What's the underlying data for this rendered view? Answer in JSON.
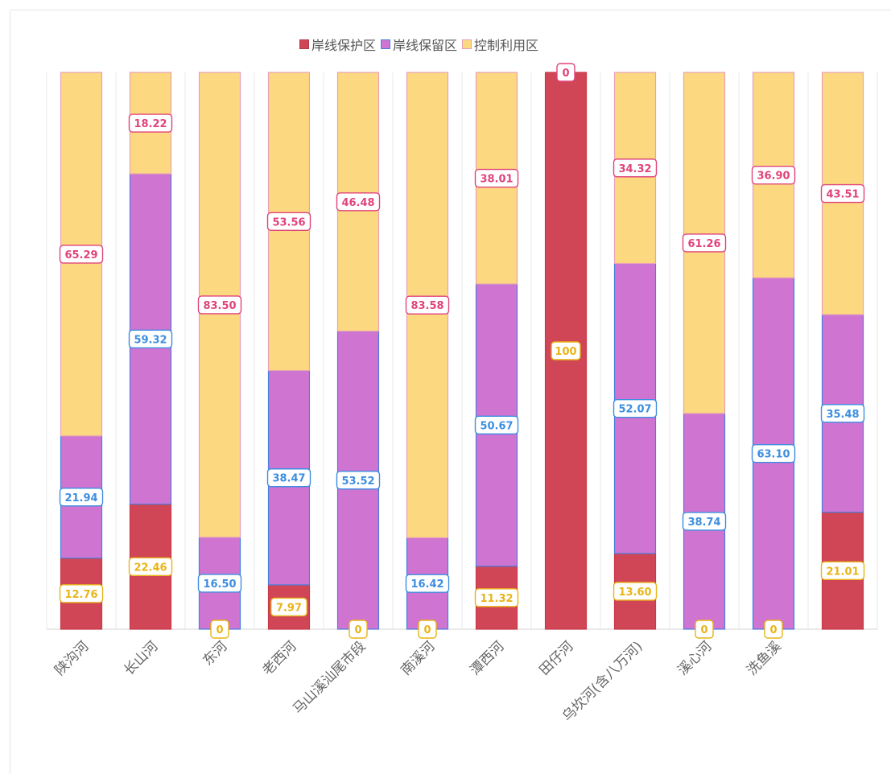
{
  "legend": [
    {
      "name": "岸线保护区",
      "color": "#d04656"
    },
    {
      "name": "岸线保留区",
      "color": "#d074d2"
    },
    {
      "name": "控制利用区",
      "color": "#fcd980"
    }
  ],
  "chart_data": {
    "type": "bar",
    "stacked": true,
    "percent": true,
    "categories": [
      "陕沟河",
      "长山河",
      "东河",
      "老西河",
      "马山溪汕尾市段",
      "南溪河",
      "潭西河",
      "田仔河",
      "乌坎河(含八万河)",
      "溪心河",
      "洗鱼溪",
      ""
    ],
    "series": [
      {
        "name": "岸线保护区",
        "color": "#d04656",
        "label_color": "#e8b417",
        "values": [
          12.76,
          22.46,
          0,
          7.97,
          0,
          0,
          11.32,
          100,
          13.6,
          0,
          0,
          21.01
        ],
        "labels": [
          "12.76",
          "22.46",
          "0",
          "7.97",
          "0",
          "0",
          "11.32",
          "100",
          "13.60",
          "0",
          "0",
          "21.01"
        ]
      },
      {
        "name": "岸线保留区",
        "color": "#d074d2",
        "label_color": "#3d8ee0",
        "values": [
          21.94,
          59.32,
          16.5,
          38.47,
          53.52,
          16.42,
          50.67,
          0,
          52.07,
          38.74,
          63.1,
          35.48
        ],
        "labels": [
          "21.94",
          "59.32",
          "16.50",
          "38.47",
          "53.52",
          "16.42",
          "50.67",
          "",
          "52.07",
          "38.74",
          "63.10",
          "35.48"
        ]
      },
      {
        "name": "控制利用区",
        "color": "#fcd980",
        "label_color": "#e0437b",
        "values": [
          65.29,
          18.22,
          83.5,
          53.56,
          46.48,
          83.58,
          38.01,
          0,
          34.32,
          61.26,
          36.9,
          43.51
        ],
        "labels": [
          "65.29",
          "18.22",
          "83.50",
          "53.56",
          "46.48",
          "83.58",
          "38.01",
          "0",
          "34.32",
          "61.26",
          "36.90",
          "43.51"
        ]
      }
    ],
    "ylim": [
      0,
      100
    ],
    "legend_position": "top-center"
  }
}
